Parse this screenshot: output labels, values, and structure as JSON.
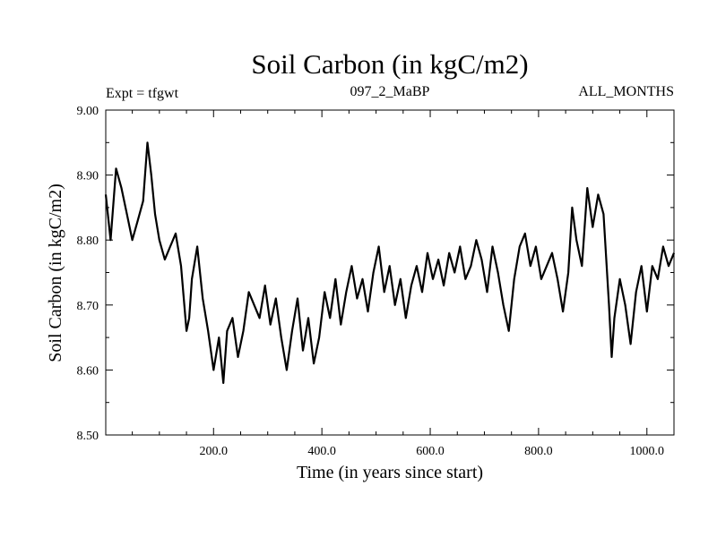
{
  "chart_data": {
    "type": "line",
    "title": "Soil Carbon (in kgC/m2)",
    "subtitle_left": "Expt = tfgwt",
    "subtitle_center": "097_2_MaBP",
    "subtitle_right": "ALL_MONTHS",
    "xlabel": "Time (in years since start)",
    "ylabel": "Soil Carbon (in kgC/m2)",
    "xlim": [
      1,
      1050
    ],
    "ylim": [
      8.5,
      9.0
    ],
    "xticks": [
      200,
      400,
      600,
      800,
      1000
    ],
    "xtick_labels": [
      "200.0",
      "400.0",
      "600.0",
      "800.0",
      "1000.0"
    ],
    "yticks": [
      8.5,
      8.6,
      8.7,
      8.8,
      8.9,
      9.0
    ],
    "ytick_labels": [
      "8.50",
      "8.60",
      "8.70",
      "8.80",
      "8.90",
      "9.00"
    ],
    "grid": false,
    "line_color": "#000000",
    "series": [
      {
        "name": "Soil Carbon",
        "x": [
          1,
          10,
          20,
          30,
          40,
          50,
          60,
          70,
          78,
          85,
          92,
          100,
          110,
          120,
          130,
          140,
          150,
          155,
          160,
          170,
          180,
          190,
          200,
          210,
          218,
          225,
          235,
          245,
          255,
          265,
          275,
          285,
          295,
          305,
          315,
          325,
          335,
          345,
          355,
          365,
          375,
          385,
          395,
          405,
          415,
          425,
          435,
          445,
          455,
          465,
          475,
          485,
          495,
          505,
          515,
          525,
          535,
          545,
          555,
          565,
          575,
          585,
          595,
          605,
          615,
          625,
          635,
          645,
          655,
          665,
          675,
          685,
          695,
          705,
          715,
          725,
          735,
          745,
          755,
          765,
          775,
          785,
          795,
          805,
          815,
          825,
          835,
          845,
          855,
          862,
          870,
          880,
          890,
          900,
          910,
          920,
          930,
          935,
          940,
          950,
          960,
          970,
          980,
          990,
          1000,
          1010,
          1020,
          1030,
          1040,
          1050
        ],
        "values": [
          8.87,
          8.8,
          8.91,
          8.88,
          8.84,
          8.8,
          8.83,
          8.86,
          8.95,
          8.9,
          8.84,
          8.8,
          8.77,
          8.79,
          8.81,
          8.76,
          8.66,
          8.68,
          8.74,
          8.79,
          8.71,
          8.66,
          8.6,
          8.65,
          8.58,
          8.66,
          8.68,
          8.62,
          8.66,
          8.72,
          8.7,
          8.68,
          8.73,
          8.67,
          8.71,
          8.65,
          8.6,
          8.66,
          8.71,
          8.63,
          8.68,
          8.61,
          8.65,
          8.72,
          8.68,
          8.74,
          8.67,
          8.72,
          8.76,
          8.71,
          8.74,
          8.69,
          8.75,
          8.79,
          8.72,
          8.76,
          8.7,
          8.74,
          8.68,
          8.73,
          8.76,
          8.72,
          8.78,
          8.74,
          8.77,
          8.73,
          8.78,
          8.75,
          8.79,
          8.74,
          8.76,
          8.8,
          8.77,
          8.72,
          8.79,
          8.75,
          8.7,
          8.66,
          8.74,
          8.79,
          8.81,
          8.76,
          8.79,
          8.74,
          8.76,
          8.78,
          8.74,
          8.69,
          8.75,
          8.85,
          8.8,
          8.76,
          8.88,
          8.82,
          8.87,
          8.84,
          8.7,
          8.62,
          8.68,
          8.74,
          8.7,
          8.64,
          8.72,
          8.76,
          8.69,
          8.76,
          8.74,
          8.79,
          8.76,
          8.78
        ]
      }
    ]
  }
}
